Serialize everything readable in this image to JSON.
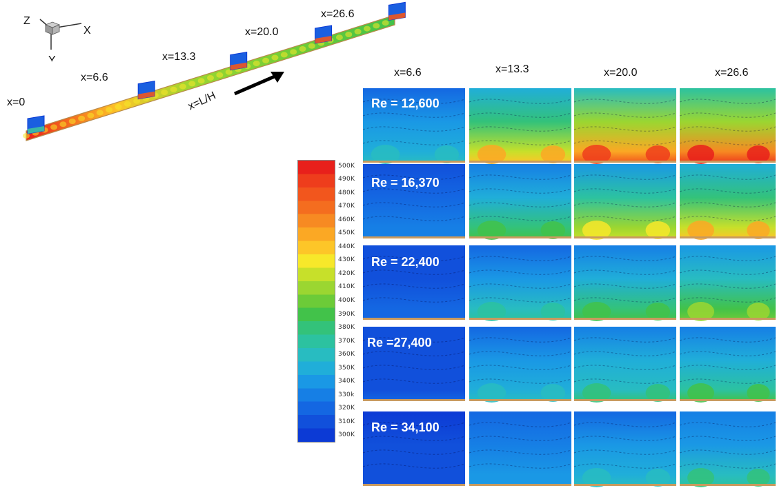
{
  "axes_triad": {
    "labels": [
      "Z",
      "X",
      "Y"
    ]
  },
  "channel": {
    "station_labels": [
      "x=0",
      "x=6.6",
      "x=13.3",
      "x=20.0",
      "x=26.6"
    ],
    "flow_axis_label": "x=L/H"
  },
  "grid": {
    "column_labels": [
      "x=6.6",
      "x=13.3",
      "x=20.0",
      "x=26.6"
    ],
    "row_labels": [
      "Re = 12,600",
      "Re = 16,370",
      "Re = 22,400",
      "Re =27,400",
      "Re = 34,100"
    ],
    "panel_heat": [
      [
        0.3,
        0.7,
        0.9,
        0.95
      ],
      [
        0.15,
        0.45,
        0.62,
        0.7
      ],
      [
        0.1,
        0.35,
        0.45,
        0.52
      ],
      [
        0.08,
        0.3,
        0.38,
        0.44
      ],
      [
        0.05,
        0.22,
        0.3,
        0.36
      ]
    ]
  },
  "colorbar": {
    "ticks": [
      "500K",
      "490K",
      "480K",
      "470K",
      "460K",
      "450K",
      "440K",
      "430K",
      "420K",
      "410K",
      "400K",
      "390K",
      "380K",
      "370K",
      "360K",
      "350K",
      "340K",
      "330k",
      "320K",
      "310K",
      "300K"
    ],
    "colors": [
      "#e8201b",
      "#ee3d1c",
      "#f2561d",
      "#f46d1f",
      "#f78a22",
      "#fba824",
      "#fdc628",
      "#f7e82a",
      "#c7e02a",
      "#9bd631",
      "#6ccb38",
      "#42c24a",
      "#33c27a",
      "#2cc2a0",
      "#28bcc1",
      "#20aed9",
      "#1a98e5",
      "#167fe5",
      "#1467e2",
      "#1150db",
      "#0c3ad5"
    ]
  },
  "colors": {
    "background": "#ffffff"
  }
}
